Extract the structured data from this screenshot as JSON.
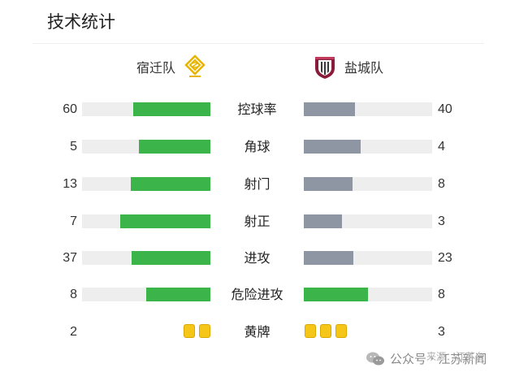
{
  "title": "技术统计",
  "teams": {
    "home": {
      "name": "宿迁队",
      "logo": "suqian-crest-icon"
    },
    "away": {
      "name": "盐城队",
      "logo": "yancheng-crest-icon"
    }
  },
  "colors": {
    "lead_bar": "#3bb54a",
    "trail_bar": "#8e95a3",
    "track": "#eeeeee",
    "yellow_card": "#f5c518"
  },
  "stats": [
    {
      "label": "控球率",
      "home": 60,
      "away": 40
    },
    {
      "label": "角球",
      "home": 5,
      "away": 4
    },
    {
      "label": "射门",
      "home": 13,
      "away": 8
    },
    {
      "label": "射正",
      "home": 7,
      "away": 3
    },
    {
      "label": "进攻",
      "home": 37,
      "away": 23
    },
    {
      "label": "危险进攻",
      "home": 8,
      "away": 8
    }
  ],
  "yellow_cards": {
    "label": "黄牌",
    "home": 2,
    "away": 3
  },
  "watermark": {
    "account": "公众号 · 江苏新闻",
    "source": "来源：江苏台",
    "icon": "wechat-icon"
  }
}
